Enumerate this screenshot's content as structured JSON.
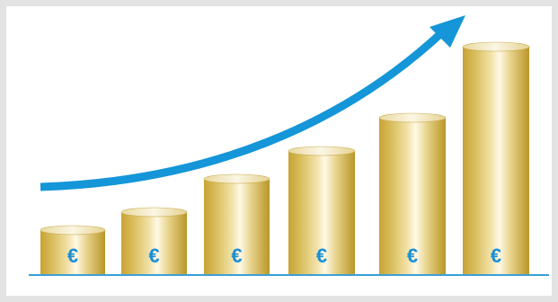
{
  "colors": {
    "background": "#e3e3e3",
    "panel": "#ffffff",
    "baseline": "#3aa0d8",
    "arrow": "#1496d8",
    "euro_symbol": "#1b8fd6",
    "gold_dark": "#b8972a",
    "gold_light": "#fff7dc"
  },
  "arrow_icon": "upward-trend-arrow-icon",
  "coin_stacks": [
    {
      "symbol": "€",
      "relative_height": 1
    },
    {
      "symbol": "€",
      "relative_height": 2
    },
    {
      "symbol": "€",
      "relative_height": 3
    },
    {
      "symbol": "€",
      "relative_height": 4
    },
    {
      "symbol": "€",
      "relative_height": 5
    },
    {
      "symbol": "€",
      "relative_height": 6
    }
  ]
}
